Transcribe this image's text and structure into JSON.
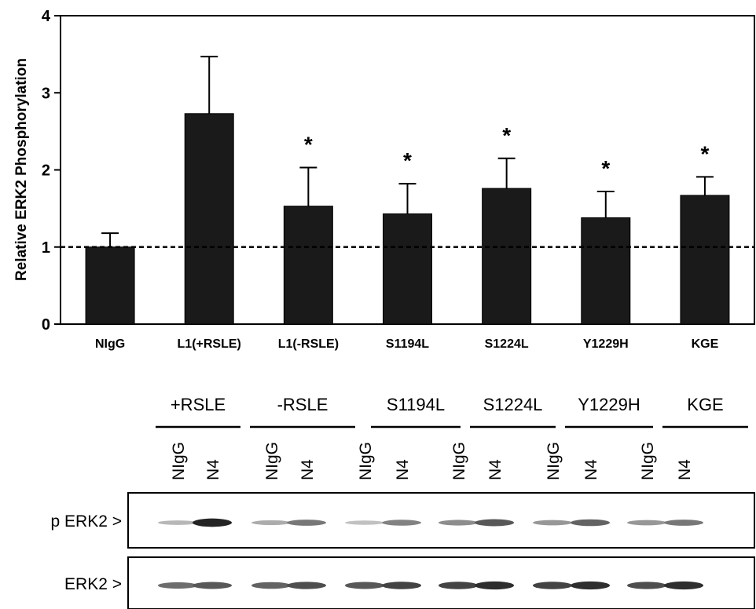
{
  "chart_data": {
    "type": "bar",
    "ylabel": "Relative ERK2 Phosphorylation",
    "ylim": [
      0,
      4
    ],
    "yticks": [
      "0",
      "1",
      "2",
      "3",
      "4"
    ],
    "categories": [
      "NIgG",
      "L1(+RSLE)",
      "L1(-RSLE)",
      "S1194L",
      "S1224L",
      "Y1229H",
      "KGE"
    ],
    "values": [
      1.0,
      2.73,
      1.53,
      1.43,
      1.76,
      1.38,
      1.67
    ],
    "error_upper": [
      0.18,
      0.74,
      0.5,
      0.39,
      0.39,
      0.34,
      0.24
    ],
    "significance": [
      "",
      "",
      "*",
      "*",
      "*",
      "*",
      "*"
    ],
    "reference_line": 1,
    "bar_color": "#1a1a1a",
    "grid": false
  },
  "blot": {
    "groups": [
      "+RSLE",
      "-RSLE",
      "S1194L",
      "S1224L",
      "Y1229H",
      "KGE"
    ],
    "lanes": [
      "NIgG",
      "N4",
      "NIgG",
      "N4",
      "NIgG",
      "N4",
      "NIgG",
      "N4",
      "NIgG",
      "N4",
      "NIgG",
      "N4"
    ],
    "rows": [
      {
        "label": "p ERK2 >",
        "intensity": [
          0.25,
          0.95,
          0.3,
          0.55,
          0.2,
          0.5,
          0.45,
          0.7,
          0.4,
          0.65,
          0.4,
          0.55
        ]
      },
      {
        "label": "ERK2 >",
        "intensity": [
          0.6,
          0.7,
          0.65,
          0.75,
          0.7,
          0.8,
          0.8,
          0.9,
          0.8,
          0.9,
          0.75,
          0.9
        ]
      }
    ]
  }
}
